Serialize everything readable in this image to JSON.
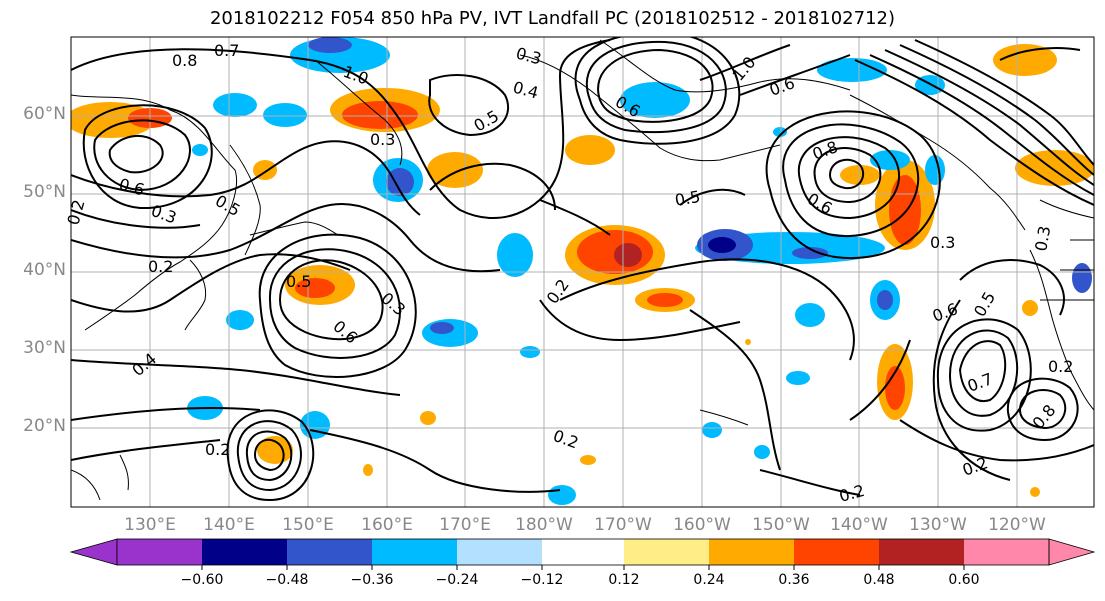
{
  "title": "2018102212 F054 850 hPa PV, IVT Landfall PC (2018102512 - 2018102712)",
  "lat_labels": [
    "60°N",
    "50°N",
    "40°N",
    "30°N",
    "20°N"
  ],
  "lon_labels": [
    "130°E",
    "140°E",
    "150°E",
    "160°E",
    "170°E",
    "180°W",
    "170°W",
    "160°W",
    "150°W",
    "140°W",
    "130°W",
    "120°W"
  ],
  "colorbar": {
    "ticks": [
      "−0.60",
      "−0.48",
      "−0.36",
      "−0.24",
      "−0.12",
      "0.12",
      "0.24",
      "0.36",
      "0.48",
      "0.60"
    ],
    "colors": [
      "#9933cc",
      "#000088",
      "#3355cc",
      "#00bbff",
      "#b3e0ff",
      "#ffffff",
      "#ffee88",
      "#ffaa00",
      "#ff4400",
      "#b22222",
      "#ff88aa"
    ]
  },
  "contour_labels": [
    "0.8",
    "0.7",
    "1.0",
    "0.3",
    "0.4",
    "0.5",
    "0.6",
    "0.2",
    "0.3",
    "0.5",
    "0.2",
    "0.6",
    "0.3",
    "0.4",
    "0.6",
    "0.2",
    "0.2",
    "0.5",
    "0.6",
    "0.3",
    "0.8",
    "0.6",
    "1.0",
    "0.5",
    "0.3",
    "0.3",
    "0.2",
    "0.7",
    "0.6",
    "0.2",
    "0.2",
    "0.8",
    "0.2",
    "0.5"
  ]
}
